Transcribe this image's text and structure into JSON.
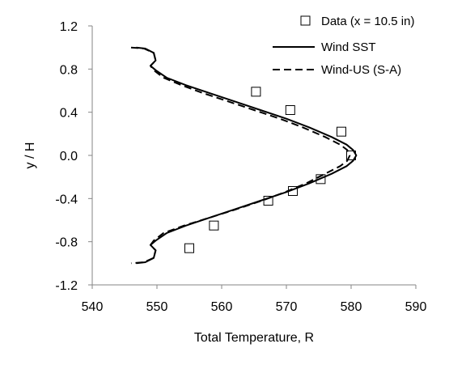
{
  "chart_data": {
    "type": "line",
    "xlabel": "Total Temperature, R",
    "ylabel": "y / H",
    "xlim": [
      540,
      590
    ],
    "ylim": [
      -1.2,
      1.2
    ],
    "x_ticks": [
      "540",
      "550",
      "560",
      "570",
      "580",
      "590"
    ],
    "y_ticks": [
      "1.2",
      "0.8",
      "0.4",
      "0.0",
      "-0.4",
      "-0.8",
      "-1.2"
    ],
    "x_tick_values": [
      540,
      550,
      560,
      570,
      580,
      590
    ],
    "y_tick_values": [
      1.2,
      0.8,
      0.4,
      0.0,
      -0.4,
      -0.8,
      -1.2
    ],
    "grid": false,
    "legend_position": "top-right",
    "series": [
      {
        "name": "Data (x = 10.5 in)",
        "style": "scatter-open-square",
        "color": "#000000",
        "points": [
          [
            565.3,
            0.59
          ],
          [
            570.6,
            0.42
          ],
          [
            578.5,
            0.22
          ],
          [
            580.0,
            0.0
          ],
          [
            575.3,
            -0.22
          ],
          [
            571.0,
            -0.33
          ],
          [
            567.2,
            -0.42
          ],
          [
            558.8,
            -0.65
          ],
          [
            555.0,
            -0.86
          ]
        ]
      },
      {
        "name": "Wind SST",
        "style": "solid",
        "color": "#000000",
        "points": [
          [
            546.8,
            1.0
          ],
          [
            548.2,
            0.99
          ],
          [
            549.5,
            0.95
          ],
          [
            549.8,
            0.88
          ],
          [
            549.0,
            0.83
          ],
          [
            549.8,
            0.79
          ],
          [
            551.5,
            0.72
          ],
          [
            554.5,
            0.65
          ],
          [
            558.0,
            0.58
          ],
          [
            562.0,
            0.5
          ],
          [
            566.0,
            0.42
          ],
          [
            570.0,
            0.34
          ],
          [
            573.5,
            0.26
          ],
          [
            577.0,
            0.17
          ],
          [
            579.3,
            0.1
          ],
          [
            580.3,
            0.05
          ],
          [
            580.8,
            0.0
          ],
          [
            580.3,
            -0.05
          ],
          [
            579.3,
            -0.1
          ],
          [
            577.0,
            -0.17
          ],
          [
            573.5,
            -0.26
          ],
          [
            570.0,
            -0.34
          ],
          [
            566.0,
            -0.42
          ],
          [
            562.0,
            -0.5
          ],
          [
            558.0,
            -0.58
          ],
          [
            554.5,
            -0.65
          ],
          [
            551.5,
            -0.72
          ],
          [
            549.8,
            -0.79
          ],
          [
            549.0,
            -0.83
          ],
          [
            549.8,
            -0.88
          ],
          [
            549.5,
            -0.95
          ],
          [
            548.2,
            -0.99
          ],
          [
            546.8,
            -1.0
          ]
        ]
      },
      {
        "name": "Wind-US (S-A)",
        "style": "dashed",
        "color": "#000000",
        "points": [
          [
            546.0,
            1.0
          ],
          [
            548.0,
            0.99
          ],
          [
            549.5,
            0.95
          ],
          [
            549.8,
            0.88
          ],
          [
            549.0,
            0.83
          ],
          [
            549.5,
            0.79
          ],
          [
            551.0,
            0.72
          ],
          [
            553.8,
            0.65
          ],
          [
            557.0,
            0.58
          ],
          [
            561.0,
            0.5
          ],
          [
            565.0,
            0.42
          ],
          [
            569.0,
            0.34
          ],
          [
            572.5,
            0.26
          ],
          [
            576.0,
            0.17
          ],
          [
            578.3,
            0.1
          ],
          [
            579.4,
            0.05
          ],
          [
            579.8,
            0.0
          ],
          [
            579.4,
            -0.05
          ],
          [
            578.3,
            -0.1
          ],
          [
            576.0,
            -0.17
          ],
          [
            573.0,
            -0.26
          ],
          [
            569.8,
            -0.34
          ],
          [
            566.2,
            -0.42
          ],
          [
            562.2,
            -0.5
          ],
          [
            558.0,
            -0.58
          ],
          [
            554.2,
            -0.65
          ],
          [
            551.0,
            -0.72
          ],
          [
            549.5,
            -0.79
          ],
          [
            549.0,
            -0.83
          ],
          [
            549.8,
            -0.88
          ],
          [
            549.5,
            -0.95
          ],
          [
            548.0,
            -0.99
          ],
          [
            546.0,
            -1.0
          ]
        ]
      }
    ]
  }
}
